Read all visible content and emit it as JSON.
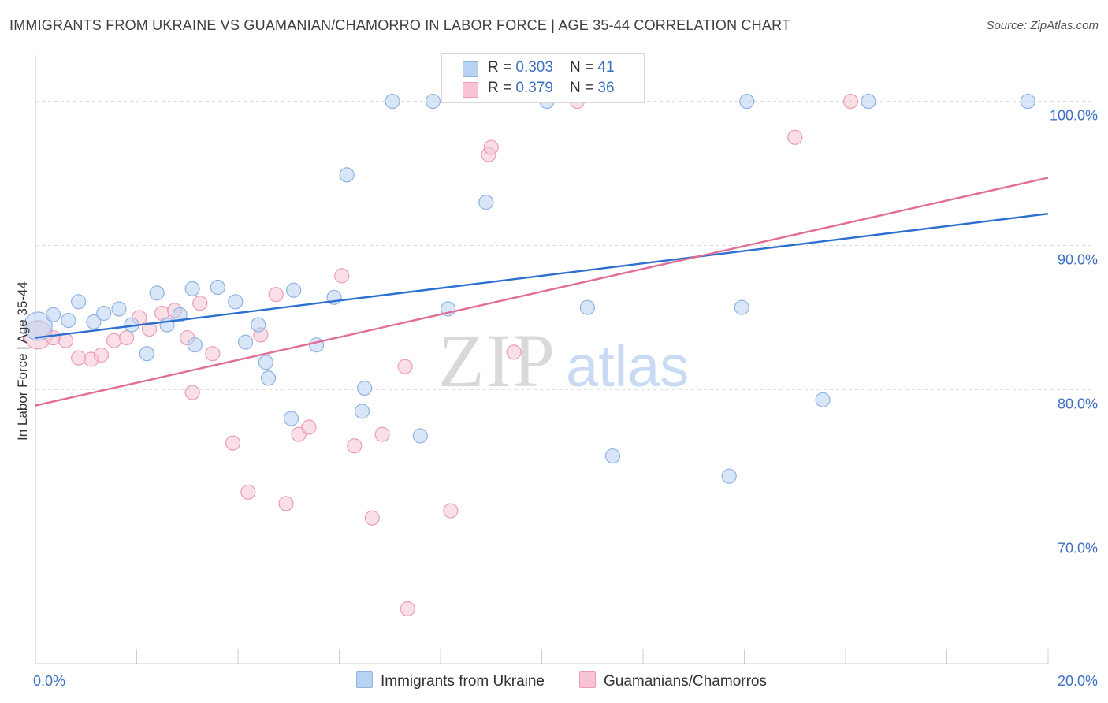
{
  "title": "IMMIGRANTS FROM UKRAINE VS GUAMANIAN/CHAMORRO IN LABOR FORCE | AGE 35-44 CORRELATION CHART",
  "source": "Source: ZipAtlas.com",
  "watermark": {
    "zip": "ZIP",
    "atlas": "atlas"
  },
  "legend": {
    "series1": {
      "r_label": "R = ",
      "r_value": "0.303",
      "n_label": "N = ",
      "n_value": "41"
    },
    "series2": {
      "r_label": "R = ",
      "r_value": "0.379",
      "n_label": "N = ",
      "n_value": "36"
    }
  },
  "colors": {
    "series1_fill": "#b8d2f2",
    "series1_stroke": "#8fb3e3",
    "series1_line": "#2b6fd0",
    "series2_fill": "#f8c4d4",
    "series2_stroke": "#ec9cb6",
    "series2_line": "#e06e97",
    "tick_label": "#3d6fc0"
  },
  "chart_data": {
    "type": "scatter",
    "title": "IMMIGRANTS FROM UKRAINE VS GUAMANIAN/CHAMORRO IN LABOR FORCE | AGE 35-44 CORRELATION CHART",
    "xlabel": "",
    "ylabel": "In Labor Force | Age 35-44",
    "xlim": [
      0,
      20
    ],
    "ylim": [
      61.0,
      103.2
    ],
    "x_tick_labels": [
      {
        "value": 0,
        "label": "0.0%"
      },
      {
        "value": 20,
        "label": "20.0%"
      }
    ],
    "y_tick_labels": [
      {
        "value": 100,
        "label": "100.0%"
      },
      {
        "value": 90,
        "label": "90.0%"
      },
      {
        "value": 80,
        "label": "80.0%"
      },
      {
        "value": 70,
        "label": "70.0%"
      }
    ],
    "grid": true,
    "legend_position": "top-center",
    "series": [
      {
        "name": "Immigrants from Ukraine",
        "r": 0.303,
        "n": 41,
        "trend": {
          "x": [
            0,
            20
          ],
          "y": [
            83.6,
            92.2
          ]
        },
        "points": [
          {
            "x": 0.05,
            "y": 84.4,
            "big": true
          },
          {
            "x": 0.35,
            "y": 85.2
          },
          {
            "x": 0.65,
            "y": 84.8
          },
          {
            "x": 0.85,
            "y": 86.1
          },
          {
            "x": 1.15,
            "y": 84.7
          },
          {
            "x": 1.35,
            "y": 85.3
          },
          {
            "x": 1.65,
            "y": 85.6
          },
          {
            "x": 1.9,
            "y": 84.5
          },
          {
            "x": 2.2,
            "y": 82.5
          },
          {
            "x": 2.4,
            "y": 86.7
          },
          {
            "x": 2.6,
            "y": 84.5
          },
          {
            "x": 2.85,
            "y": 85.2
          },
          {
            "x": 3.15,
            "y": 83.1
          },
          {
            "x": 3.1,
            "y": 87.0
          },
          {
            "x": 3.6,
            "y": 87.1
          },
          {
            "x": 3.95,
            "y": 86.1
          },
          {
            "x": 4.15,
            "y": 83.3
          },
          {
            "x": 4.4,
            "y": 84.5
          },
          {
            "x": 4.6,
            "y": 80.8
          },
          {
            "x": 4.55,
            "y": 81.9
          },
          {
            "x": 5.1,
            "y": 86.9
          },
          {
            "x": 5.05,
            "y": 78.0
          },
          {
            "x": 5.55,
            "y": 83.1
          },
          {
            "x": 5.9,
            "y": 86.4
          },
          {
            "x": 6.15,
            "y": 94.9
          },
          {
            "x": 6.5,
            "y": 80.1
          },
          {
            "x": 6.45,
            "y": 78.5
          },
          {
            "x": 7.05,
            "y": 100.0
          },
          {
            "x": 7.6,
            "y": 76.8
          },
          {
            "x": 7.85,
            "y": 100.0
          },
          {
            "x": 8.15,
            "y": 85.6
          },
          {
            "x": 8.9,
            "y": 93.0
          },
          {
            "x": 10.1,
            "y": 100.0
          },
          {
            "x": 10.9,
            "y": 85.7
          },
          {
            "x": 11.4,
            "y": 75.4
          },
          {
            "x": 13.7,
            "y": 74.0
          },
          {
            "x": 13.95,
            "y": 85.7
          },
          {
            "x": 14.05,
            "y": 100.0
          },
          {
            "x": 15.55,
            "y": 79.3
          },
          {
            "x": 16.45,
            "y": 100.0
          },
          {
            "x": 19.6,
            "y": 100.0
          }
        ]
      },
      {
        "name": "Guamanians/Chamorros",
        "r": 0.379,
        "n": 36,
        "trend": {
          "x": [
            0,
            20
          ],
          "y": [
            78.9,
            94.7
          ]
        },
        "points": [
          {
            "x": 0.05,
            "y": 83.8,
            "big": true
          },
          {
            "x": 0.35,
            "y": 83.6
          },
          {
            "x": 0.6,
            "y": 83.4
          },
          {
            "x": 0.85,
            "y": 82.2
          },
          {
            "x": 1.1,
            "y": 82.1
          },
          {
            "x": 1.3,
            "y": 82.4
          },
          {
            "x": 1.55,
            "y": 83.4
          },
          {
            "x": 1.8,
            "y": 83.6
          },
          {
            "x": 2.05,
            "y": 85.0
          },
          {
            "x": 2.25,
            "y": 84.2
          },
          {
            "x": 2.5,
            "y": 85.3
          },
          {
            "x": 2.75,
            "y": 85.5
          },
          {
            "x": 3.0,
            "y": 83.6
          },
          {
            "x": 3.25,
            "y": 86.0
          },
          {
            "x": 3.1,
            "y": 79.8
          },
          {
            "x": 3.5,
            "y": 82.5
          },
          {
            "x": 3.9,
            "y": 76.3
          },
          {
            "x": 4.2,
            "y": 72.9
          },
          {
            "x": 4.45,
            "y": 83.8
          },
          {
            "x": 4.75,
            "y": 86.6
          },
          {
            "x": 4.95,
            "y": 72.1
          },
          {
            "x": 5.2,
            "y": 76.9
          },
          {
            "x": 5.4,
            "y": 77.4
          },
          {
            "x": 6.05,
            "y": 87.9
          },
          {
            "x": 6.3,
            "y": 76.1
          },
          {
            "x": 6.65,
            "y": 71.1
          },
          {
            "x": 6.85,
            "y": 76.9
          },
          {
            "x": 7.3,
            "y": 81.6
          },
          {
            "x": 7.35,
            "y": 64.8
          },
          {
            "x": 8.2,
            "y": 71.6
          },
          {
            "x": 8.95,
            "y": 96.3
          },
          {
            "x": 9.0,
            "y": 96.8
          },
          {
            "x": 9.45,
            "y": 82.6
          },
          {
            "x": 10.7,
            "y": 100.0
          },
          {
            "x": 15.0,
            "y": 97.5
          },
          {
            "x": 16.1,
            "y": 100.0
          }
        ]
      }
    ]
  }
}
